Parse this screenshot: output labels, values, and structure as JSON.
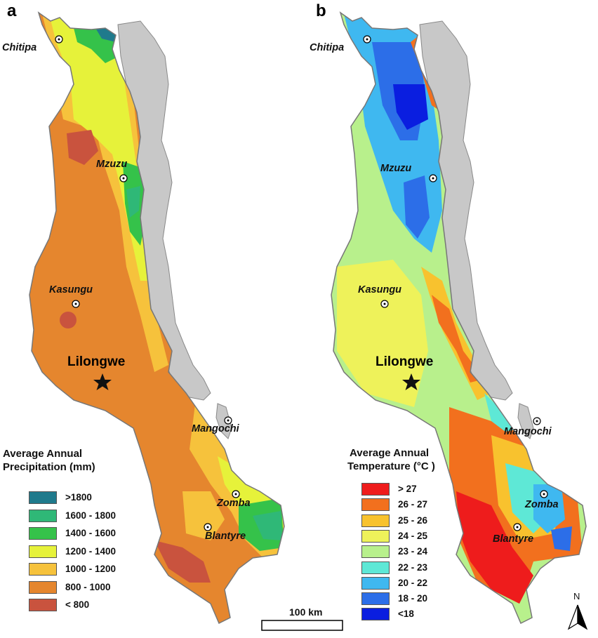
{
  "panels": {
    "a": {
      "letter": "a",
      "legend_title_line1": "Average Annual",
      "legend_title_line2": "Precipitation (mm)",
      "legend": [
        {
          "label": ">1800",
          "color": "#1f7a8c"
        },
        {
          "label": "1600 - 1800",
          "color": "#2fb877"
        },
        {
          "label": "1400 - 1600",
          "color": "#35c24a"
        },
        {
          "label": "1200 - 1400",
          "color": "#e6f23a"
        },
        {
          "label": "1000 - 1200",
          "color": "#f6c23c"
        },
        {
          "label": "800 - 1000",
          "color": "#e5862e"
        },
        {
          "label": "< 800",
          "color": "#c9533e"
        }
      ]
    },
    "b": {
      "letter": "b",
      "legend_title_line1": "Average Annual",
      "legend_title_line2": "Temperature (°C )",
      "legend": [
        {
          "label": "> 27",
          "color": "#ee1c1c"
        },
        {
          "label": "26 - 27",
          "color": "#f2701e"
        },
        {
          "label": "25 - 26",
          "color": "#f8c22e"
        },
        {
          "label": "24 - 25",
          "color": "#eef25a"
        },
        {
          "label": "23 - 24",
          "color": "#b8f08c"
        },
        {
          "label": "22 - 23",
          "color": "#5ee8d6"
        },
        {
          "label": "20 - 22",
          "color": "#3fb8f0"
        },
        {
          "label": "18 - 20",
          "color": "#2c6ee8"
        },
        {
          "label": "<18",
          "color": "#0a1ee0"
        }
      ]
    }
  },
  "cities": {
    "chitipa": "Chitipa",
    "mzuzu": "Mzuzu",
    "kasungu": "Kasungu",
    "lilongwe": "Lilongwe",
    "mangochi": "Mangochi",
    "zomba": "Zomba",
    "blantyre": "Blantyre"
  },
  "scale_bar": {
    "label": "100 km"
  },
  "north_arrow": {
    "label": "N"
  },
  "colors": {
    "lake": "#c8c8c8",
    "border": "#777777"
  }
}
